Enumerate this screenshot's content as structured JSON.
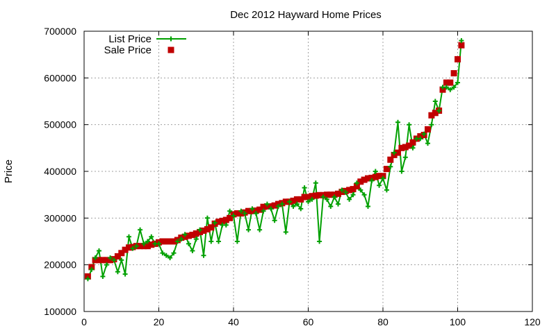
{
  "chart_data": {
    "type": "line",
    "title": "Dec 2012 Hayward Home Prices",
    "xlabel": "",
    "ylabel": "Price",
    "xlim": [
      0,
      120
    ],
    "ylim": [
      100000,
      700000
    ],
    "x_ticks": [
      0,
      20,
      40,
      60,
      80,
      100,
      120
    ],
    "y_ticks": [
      100000,
      200000,
      300000,
      400000,
      500000,
      600000,
      700000
    ],
    "x_tick_labels": [
      "0",
      "20",
      "40",
      "60",
      "80",
      "100",
      "120"
    ],
    "y_tick_labels": [
      "100000",
      "200000",
      "300000",
      "400000",
      "500000",
      "600000",
      "700000"
    ],
    "grid": true,
    "legend_position": "top-left",
    "colors": {
      "list_price": "#00a000",
      "sale_price": "#c00000"
    },
    "series": [
      {
        "name": "List Price",
        "style": "line-plus",
        "x": [
          1,
          2,
          3,
          4,
          5,
          6,
          7,
          8,
          9,
          10,
          11,
          12,
          13,
          14,
          15,
          16,
          17,
          18,
          19,
          20,
          21,
          22,
          23,
          24,
          25,
          26,
          27,
          28,
          29,
          30,
          31,
          32,
          33,
          34,
          35,
          36,
          37,
          38,
          39,
          40,
          41,
          42,
          43,
          44,
          45,
          46,
          47,
          48,
          49,
          50,
          51,
          52,
          53,
          54,
          55,
          56,
          57,
          58,
          59,
          60,
          61,
          62,
          63,
          64,
          65,
          66,
          67,
          68,
          69,
          70,
          71,
          72,
          73,
          74,
          75,
          76,
          77,
          78,
          79,
          80,
          81,
          82,
          83,
          84,
          85,
          86,
          87,
          88,
          89,
          90,
          91,
          92,
          93,
          94,
          95,
          96,
          97,
          98,
          99,
          100,
          101
        ],
        "values": [
          170000,
          190000,
          215000,
          230000,
          175000,
          200000,
          215000,
          210000,
          185000,
          210000,
          180000,
          260000,
          235000,
          240000,
          275000,
          245000,
          250000,
          260000,
          245000,
          245000,
          225000,
          220000,
          215000,
          225000,
          250000,
          255000,
          265000,
          245000,
          230000,
          255000,
          275000,
          220000,
          300000,
          250000,
          290000,
          250000,
          285000,
          285000,
          315000,
          305000,
          250000,
          315000,
          310000,
          275000,
          320000,
          310000,
          275000,
          315000,
          330000,
          320000,
          295000,
          325000,
          330000,
          270000,
          335000,
          325000,
          330000,
          320000,
          365000,
          335000,
          340000,
          375000,
          250000,
          345000,
          340000,
          325000,
          345000,
          330000,
          360000,
          355000,
          340000,
          350000,
          375000,
          360000,
          350000,
          325000,
          380000,
          400000,
          370000,
          385000,
          360000,
          410000,
          440000,
          505000,
          400000,
          430000,
          500000,
          450000,
          470000,
          470000,
          480000,
          460000,
          500000,
          550000,
          530000,
          580000,
          580000,
          575000,
          580000,
          590000,
          680000
        ]
      },
      {
        "name": "Sale Price",
        "style": "square-markers",
        "x": [
          1,
          2,
          3,
          4,
          5,
          6,
          7,
          8,
          9,
          10,
          11,
          12,
          13,
          14,
          15,
          16,
          17,
          18,
          19,
          20,
          21,
          22,
          23,
          24,
          25,
          26,
          27,
          28,
          29,
          30,
          31,
          32,
          33,
          34,
          35,
          36,
          37,
          38,
          39,
          40,
          41,
          42,
          43,
          44,
          45,
          46,
          47,
          48,
          49,
          50,
          51,
          52,
          53,
          54,
          55,
          56,
          57,
          58,
          59,
          60,
          61,
          62,
          63,
          64,
          65,
          66,
          67,
          68,
          69,
          70,
          71,
          72,
          73,
          74,
          75,
          76,
          77,
          78,
          79,
          80,
          81,
          82,
          83,
          84,
          85,
          86,
          87,
          88,
          89,
          90,
          91,
          92,
          93,
          94,
          95,
          96,
          97,
          98,
          99,
          100,
          101
        ],
        "values": [
          175000,
          195000,
          210000,
          210000,
          210000,
          210000,
          210000,
          212000,
          218000,
          225000,
          232000,
          237000,
          238000,
          240000,
          240000,
          240000,
          240000,
          243000,
          245000,
          248000,
          250000,
          250000,
          250000,
          250000,
          253000,
          258000,
          260000,
          262000,
          264000,
          267000,
          270000,
          273000,
          276000,
          280000,
          288000,
          292000,
          294000,
          296000,
          300000,
          308000,
          310000,
          310000,
          312000,
          315000,
          315000,
          316000,
          318000,
          324000,
          325000,
          325000,
          327000,
          330000,
          332000,
          335000,
          335000,
          337000,
          340000,
          340000,
          345000,
          345000,
          347000,
          348000,
          349000,
          349000,
          350000,
          350000,
          350000,
          352000,
          356000,
          358000,
          360000,
          362000,
          368000,
          378000,
          382000,
          385000,
          386000,
          388000,
          390000,
          390000,
          405000,
          425000,
          435000,
          440000,
          450000,
          452000,
          455000,
          462000,
          470000,
          475000,
          478000,
          490000,
          520000,
          525000,
          530000,
          575000,
          590000,
          590000,
          610000,
          640000,
          670000
        ]
      }
    ]
  }
}
